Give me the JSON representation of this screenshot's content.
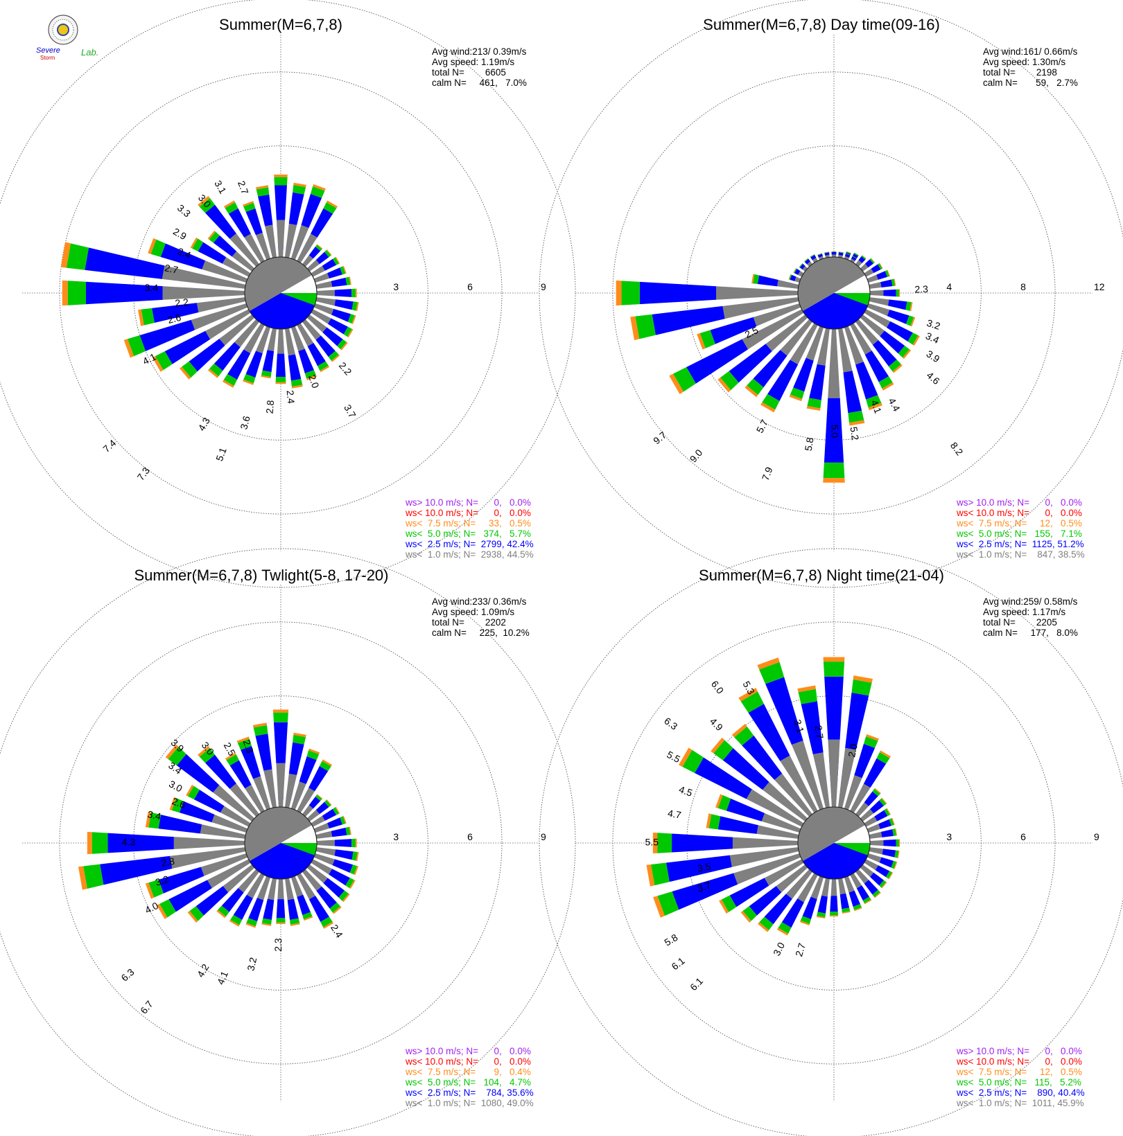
{
  "logo": {
    "line1": "Severe",
    "line2": "Storm",
    "line3": "Lab."
  },
  "colors": {
    "ws_gt_10": "#a020f0",
    "ws_lt_10": "#ff0000",
    "ws_lt_7_5": "#ff8c1a",
    "ws_lt_5": "#00c800",
    "ws_lt_2_5": "#0000ff",
    "ws_lt_1": "#808080",
    "calm": "#ffffff"
  },
  "chart_data": [
    {
      "type": "windrose",
      "title": "Summer(M=6,7,8)",
      "stats": {
        "avg_wind": "Avg wind:213/ 0.39m/s",
        "avg_speed": "Avg speed: 1.19m/s",
        "total": "total N=        6605",
        "calm": "calm N=     461,   7.0%"
      },
      "ring_labels": [
        "3",
        "6",
        "9"
      ],
      "rmax": 9,
      "legend": [
        {
          "text": "ws> 10.0 m/s; N=      0,   0.0%",
          "color": "#a020f0"
        },
        {
          "text": "ws< 10.0 m/s; N=      0,   0.0%",
          "color": "#ff0000"
        },
        {
          "text": "ws<  7.5 m/s; N=     33,   0.5%",
          "color": "#ff8c1a"
        },
        {
          "text": "ws<  5.0 m/s; N=   374,   5.7%",
          "color": "#00c800"
        },
        {
          "text": "ws<  2.5 m/s; N=  2799, 42.4%",
          "color": "#0000ff"
        },
        {
          "text": "ws<  1.0 m/s; N=  2938, 44.5%",
          "color": "#808080"
        }
      ],
      "directions_deg_step": 10,
      "sector_pct": [
        0.6,
        0.7,
        0.8,
        0.9,
        1.0,
        1.1,
        1.2,
        1.3,
        1.4,
        1.6,
        1.7,
        1.7,
        1.8,
        1.9,
        2.0,
        2.1,
        2.2,
        2.4,
        2.2,
        2.0,
        2.4,
        2.8,
        2.8,
        3.6,
        4.3,
        5.1,
        4.3,
        7.3,
        7.4,
        4.1,
        2.6,
        2.2,
        3.4,
        2.7,
        2.4,
        2.9,
        3.3,
        3.0,
        3.1,
        2.7
      ],
      "labels": [
        {
          "dir": 140,
          "text": "2.2"
        },
        {
          "dir": 150,
          "text": "3.7"
        },
        {
          "dir": 160,
          "text": "2.0"
        },
        {
          "dir": 175,
          "text": "2.4"
        },
        {
          "dir": 185,
          "text": "2.8"
        },
        {
          "dir": 195,
          "text": "3.6"
        },
        {
          "dir": 210,
          "text": "4.3"
        },
        {
          "dir": 200,
          "text": "5.1"
        },
        {
          "dir": 217,
          "text": "7.3"
        },
        {
          "dir": 228,
          "text": "7.4"
        },
        {
          "dir": 243,
          "text": "4.1"
        },
        {
          "dir": 256,
          "text": "2.6"
        },
        {
          "dir": 264,
          "text": "2.2"
        },
        {
          "dir": 272,
          "text": "3.4"
        },
        {
          "dir": 282,
          "text": "2.7"
        },
        {
          "dir": 292,
          "text": "2.4"
        },
        {
          "dir": 300,
          "text": "2.9"
        },
        {
          "dir": 310,
          "text": "3.3"
        },
        {
          "dir": 320,
          "text": "3.0"
        },
        {
          "dir": 330,
          "text": "3.1"
        },
        {
          "dir": 340,
          "text": "2.7"
        }
      ]
    },
    {
      "type": "windrose",
      "title": "Summer(M=6,7,8) Day time(09-16)",
      "stats": {
        "avg_wind": "Avg wind:161/ 0.66m/s",
        "avg_speed": "Avg speed: 1.30m/s",
        "total": "total N=        2198",
        "calm": "calm N=       59,   2.7%"
      },
      "ring_labels": [
        "4",
        "8",
        "12"
      ],
      "rmax": 12,
      "legend": [
        {
          "text": "ws> 10.0 m/s; N=      0,   0.0%",
          "color": "#a020f0"
        },
        {
          "text": "ws< 10.0 m/s; N=      0,   0.0%",
          "color": "#ff0000"
        },
        {
          "text": "ws<  7.5 m/s; N=     12,   0.5%",
          "color": "#ff8c1a"
        },
        {
          "text": "ws<  5.0 m/s; N=   155,   7.1%",
          "color": "#00c800"
        },
        {
          "text": "ws<  2.5 m/s; N=  1125, 51.2%",
          "color": "#0000ff"
        },
        {
          "text": "ws<  1.0 m/s; N=    847, 38.5%",
          "color": "#808080"
        }
      ],
      "directions_deg_step": 10,
      "sector_pct": [
        0.3,
        0.3,
        0.4,
        0.5,
        0.6,
        0.8,
        1.0,
        1.2,
        1.4,
        1.6,
        2.3,
        2.6,
        3.2,
        3.2,
        3.4,
        3.9,
        4.6,
        5.2,
        8.2,
        4.4,
        4.1,
        5.2,
        5.0,
        5.8,
        7.9,
        5.7,
        9.0,
        9.7,
        2.5,
        0.6,
        0.5,
        0.4,
        0.4,
        0.4,
        0.3,
        0.3,
        0.3,
        0.3,
        0.3,
        0.3
      ],
      "labels": [
        {
          "dir": 88,
          "text": "2.3"
        },
        {
          "dir": 108,
          "text": "3.2"
        },
        {
          "dir": 115,
          "text": "3.4"
        },
        {
          "dir": 123,
          "text": "3.9"
        },
        {
          "dir": 131,
          "text": "4.6"
        },
        {
          "dir": 142,
          "text": "8.2"
        },
        {
          "dir": 152,
          "text": "4.4"
        },
        {
          "dir": 160,
          "text": "4.1"
        },
        {
          "dir": 172,
          "text": "5.2"
        },
        {
          "dir": 180,
          "text": "5.0"
        },
        {
          "dir": 189,
          "text": "5.8"
        },
        {
          "dir": 200,
          "text": "7.9"
        },
        {
          "dir": 208,
          "text": "5.7"
        },
        {
          "dir": 220,
          "text": "9.0"
        },
        {
          "dir": 230,
          "text": "9.7"
        },
        {
          "dir": 244,
          "text": "2.5"
        }
      ]
    },
    {
      "type": "windrose",
      "title": "Summer(M=6,7,8) Twlight(5-8, 17-20)",
      "stats": {
        "avg_wind": "Avg wind:233/ 0.36m/s",
        "avg_speed": "Avg speed: 1.09m/s",
        "total": "total N=        2202",
        "calm": "calm N=     225,  10.2%"
      },
      "ring_labels": [
        "3",
        "6",
        "9"
      ],
      "rmax": 9,
      "legend": [
        {
          "text": "ws> 10.0 m/s; N=      0,   0.0%",
          "color": "#a020f0"
        },
        {
          "text": "ws< 10.0 m/s; N=      0,   0.0%",
          "color": "#ff0000"
        },
        {
          "text": "ws<  7.5 m/s; N=       9,   0.4%",
          "color": "#ff8c1a"
        },
        {
          "text": "ws<  5.0 m/s; N=   104,   4.7%",
          "color": "#00c800"
        },
        {
          "text": "ws<  2.5 m/s; N=    784, 35.6%",
          "color": "#0000ff"
        },
        {
          "text": "ws<  1.0 m/s; N=  1080, 49.0%",
          "color": "#808080"
        }
      ],
      "directions_deg_step": 10,
      "sector_pct": [
        0.6,
        0.7,
        0.8,
        0.9,
        1.0,
        1.1,
        1.2,
        1.3,
        1.4,
        1.6,
        1.7,
        1.8,
        1.9,
        2.0,
        2.1,
        2.4,
        1.8,
        1.9,
        1.8,
        1.9,
        2.1,
        2.3,
        2.3,
        3.2,
        4.1,
        4.2,
        6.7,
        6.3,
        4.0,
        3.2,
        2.8,
        4.3,
        3.4,
        2.6,
        3.0,
        3.4,
        3.9,
        3.0,
        2.5,
        2.3
      ],
      "labels": [
        {
          "dir": 148,
          "text": "2.4"
        },
        {
          "dir": 181,
          "text": "2.3"
        },
        {
          "dir": 193,
          "text": "3.2"
        },
        {
          "dir": 203,
          "text": "4.1"
        },
        {
          "dir": 211,
          "text": "4.2"
        },
        {
          "dir": 219,
          "text": "6.7"
        },
        {
          "dir": 229,
          "text": "6.3"
        },
        {
          "dir": 243,
          "text": "4.0"
        },
        {
          "dir": 252,
          "text": "3.2"
        },
        {
          "dir": 260,
          "text": "2.8"
        },
        {
          "dir": 270,
          "text": "4.3"
        },
        {
          "dir": 282,
          "text": "3.4"
        },
        {
          "dir": 291,
          "text": "2.6"
        },
        {
          "dir": 298,
          "text": "3.0"
        },
        {
          "dir": 305,
          "text": "3.4"
        },
        {
          "dir": 313,
          "text": "3.9"
        },
        {
          "dir": 322,
          "text": "3.0"
        },
        {
          "dir": 331,
          "text": "2.5"
        },
        {
          "dir": 341,
          "text": "2.3"
        }
      ]
    },
    {
      "type": "windrose",
      "title": "Summer(M=6,7,8) Night time(21-04)",
      "stats": {
        "avg_wind": "Avg wind:259/ 0.58m/s",
        "avg_speed": "Avg speed: 1.17m/s",
        "total": "total N=        2205",
        "calm": "calm N=     177,   8.0%"
      },
      "ring_labels": [
        "3",
        "6",
        "9"
      ],
      "rmax": 9,
      "legend": [
        {
          "text": "ws> 10.0 m/s; N=      0,   0.0%",
          "color": "#a020f0"
        },
        {
          "text": "ws< 10.0 m/s; N=      0,   0.0%",
          "color": "#ff0000"
        },
        {
          "text": "ws<  7.5 m/s; N=     12,   0.5%",
          "color": "#ff8c1a"
        },
        {
          "text": "ws<  5.0 m/s; N=   115,   5.2%",
          "color": "#00c800"
        },
        {
          "text": "ws<  2.5 m/s; N=    890, 40.4%",
          "color": "#0000ff"
        },
        {
          "text": "ws<  1.0 m/s; N=  1011, 45.9%",
          "color": "#808080"
        }
      ],
      "directions_deg_step": 10,
      "sector_pct": [
        2.2,
        2.0,
        1.7,
        1.5,
        1.3,
        1.2,
        1.1,
        1.1,
        1.1,
        1.2,
        1.2,
        1.2,
        1.2,
        1.2,
        1.3,
        1.3,
        1.4,
        1.4,
        1.5,
        1.6,
        2.0,
        2.7,
        3.0,
        3.2,
        3.7,
        6.1,
        6.1,
        5.8,
        3.7,
        3.5,
        5.5,
        4.7,
        4.5,
        5.5,
        6.3,
        4.9,
        6.0,
        5.3,
        3.1,
        2.7
      ],
      "labels": [
        {
          "dir": 197,
          "text": "2.7"
        },
        {
          "dir": 207,
          "text": "3.0"
        },
        {
          "dir": 224,
          "text": "6.1"
        },
        {
          "dir": 232,
          "text": "6.1"
        },
        {
          "dir": 239,
          "text": "5.8"
        },
        {
          "dir": 251,
          "text": "3.7"
        },
        {
          "dir": 259,
          "text": "3.5"
        },
        {
          "dir": 270,
          "text": "5.5"
        },
        {
          "dir": 280,
          "text": "4.7"
        },
        {
          "dir": 289,
          "text": "4.5"
        },
        {
          "dir": 298,
          "text": "5.5"
        },
        {
          "dir": 306,
          "text": "6.3"
        },
        {
          "dir": 315,
          "text": "4.9"
        },
        {
          "dir": 323,
          "text": "6.0"
        },
        {
          "dir": 331,
          "text": "5.3"
        },
        {
          "dir": 343,
          "text": "3.1"
        },
        {
          "dir": 352,
          "text": "2.7"
        },
        {
          "dir": 12,
          "text": "2.0"
        }
      ]
    }
  ]
}
